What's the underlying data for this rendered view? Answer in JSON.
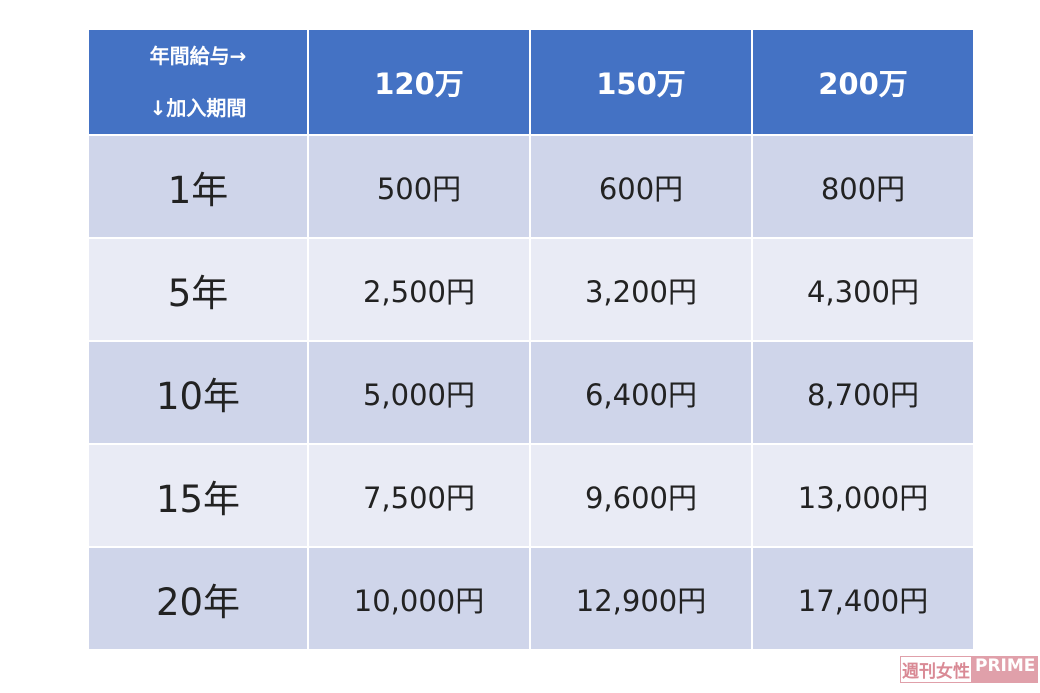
{
  "chart_data": {
    "type": "table",
    "corner_top": "年間給与→",
    "corner_bottom": "↓加入期間",
    "columns": [
      "120万",
      "150万",
      "200万"
    ],
    "rows": [
      {
        "label": "1年",
        "values": [
          "500円",
          "600円",
          "800円"
        ]
      },
      {
        "label": "5年",
        "values": [
          "2,500円",
          "3,200円",
          "4,300円"
        ]
      },
      {
        "label": "10年",
        "values": [
          "5,000円",
          "6,400円",
          "8,700円"
        ]
      },
      {
        "label": "15年",
        "values": [
          "7,500円",
          "9,600円",
          "13,000円"
        ]
      },
      {
        "label": "20年",
        "values": [
          "10,000円",
          "12,900円",
          "17,400円"
        ]
      }
    ],
    "colors": {
      "header": "#4472c4",
      "row_odd": "#cfd5ea",
      "row_even": "#e9ebf5"
    }
  },
  "watermark": {
    "text_jp": "週刊女性",
    "text_en": "PRIME"
  }
}
